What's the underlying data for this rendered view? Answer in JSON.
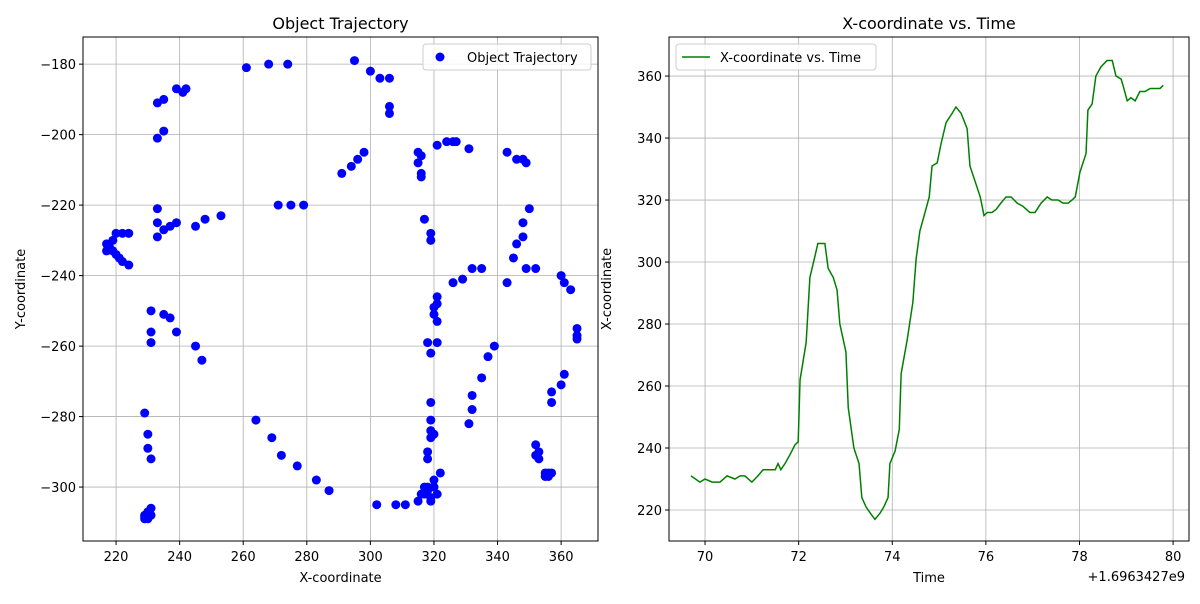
{
  "chart_data": [
    {
      "type": "scatter",
      "title": "Object Trajectory",
      "xlabel": "X-coordinate",
      "ylabel": "Y-coordinate",
      "xlim": [
        209.6,
        371.6
      ],
      "ylim": [
        -315.3,
        -172.3
      ],
      "xticks": [
        220,
        240,
        260,
        280,
        300,
        320,
        340,
        360
      ],
      "yticks": [
        {
          "value": -300,
          "label": "−300"
        },
        {
          "value": -280,
          "label": "−280"
        },
        {
          "value": -260,
          "label": "−260"
        },
        {
          "value": -240,
          "label": "−240"
        },
        {
          "value": -220,
          "label": "−220"
        },
        {
          "value": -200,
          "label": "−200"
        },
        {
          "value": -180,
          "label": "−180"
        }
      ],
      "grid": true,
      "legend": "upper right",
      "x": [
        217,
        217,
        218,
        219,
        219,
        220,
        220,
        222,
        222,
        221,
        224,
        224,
        231,
        231,
        231,
        235,
        237,
        239,
        245,
        247,
        233,
        235,
        239,
        241,
        242,
        235,
        233,
        233,
        233,
        235,
        237,
        239,
        233,
        245,
        248,
        253,
        261,
        268,
        274,
        271,
        275,
        279,
        291,
        294,
        296,
        298,
        300,
        303,
        306,
        306,
        306,
        295,
        315,
        315,
        316,
        316,
        316,
        317,
        319,
        319,
        321,
        324,
        326,
        327,
        331,
        343,
        346,
        348,
        349,
        350,
        348,
        348,
        346,
        345,
        326,
        329,
        332,
        335,
        343,
        349,
        352,
        321,
        321,
        320,
        320,
        321,
        318,
        319,
        321,
        339,
        337,
        335,
        332,
        332,
        331,
        360,
        361,
        363,
        365,
        365,
        365,
        361,
        360,
        357,
        357,
        319,
        319,
        319,
        320,
        319,
        318,
        318,
        322,
        320,
        264,
        269,
        272,
        277,
        283,
        287,
        302,
        308,
        311,
        315,
        317,
        318,
        317,
        319,
        319,
        320,
        321,
        316,
        318,
        352,
        353,
        352,
        353,
        355,
        356,
        355,
        357,
        356,
        229,
        230,
        230,
        231,
        229,
        229,
        230,
        231,
        231,
        230,
        229
      ],
      "series": [
        {
          "name": "Object Trajectory",
          "color": "#0000ff",
          "values": [
            -233,
            -231,
            -232,
            -230,
            -233,
            -234,
            -228,
            -228,
            -236,
            -235,
            -237,
            -228,
            -250,
            -256,
            -259,
            -251,
            -252,
            -256,
            -260,
            -264,
            -191,
            -190,
            -187,
            -188,
            -187,
            -199,
            -201,
            -221,
            -225,
            -227,
            -226,
            -225,
            -229,
            -226,
            -224,
            -223,
            -181,
            -180,
            -180,
            -220,
            -220,
            -220,
            -211,
            -209,
            -207,
            -205,
            -182,
            -184,
            -184,
            -192,
            -194,
            -179,
            -205,
            -208,
            -206,
            -211,
            -212,
            -224,
            -228,
            -230,
            -203,
            -202,
            -202,
            -202,
            -204,
            -205,
            -207,
            -207,
            -208,
            -221,
            -225,
            -229,
            -231,
            -235,
            -242,
            -241,
            -238,
            -238,
            -242,
            -238,
            -238,
            -246,
            -248,
            -249,
            -251,
            -253,
            -259,
            -262,
            -259,
            -260,
            -263,
            -269,
            -274,
            -278,
            -282,
            -240,
            -242,
            -244,
            -255,
            -257,
            -258,
            -268,
            -271,
            -273,
            -276,
            -276,
            -281,
            -284,
            -285,
            -286,
            -290,
            -292,
            -296,
            -298,
            -281,
            -286,
            -291,
            -294,
            -298,
            -301,
            -305,
            -305,
            -305,
            -304,
            -300,
            -301,
            -302,
            -303,
            -304,
            -300,
            -302,
            -302,
            -300,
            -288,
            -290,
            -291,
            -292,
            -296,
            -296,
            -297,
            -296,
            -297,
            -279,
            -285,
            -289,
            -292,
            -308,
            -309,
            -309,
            -308,
            -306,
            -307,
            -308.5
          ]
        }
      ]
    },
    {
      "type": "line",
      "title": "X-coordinate vs. Time",
      "xlabel": "Time",
      "ylabel": "X-coordinate",
      "x_offset_text": "+1.6963427e9",
      "xlim": [
        69.23,
        80.34
      ],
      "ylim": [
        210,
        372.6
      ],
      "xticks": [
        70,
        72,
        74,
        76,
        78,
        80
      ],
      "yticks": [
        220,
        240,
        260,
        280,
        300,
        320,
        340,
        360
      ],
      "grid": true,
      "legend": "upper left",
      "x": [
        69.7,
        69.89,
        70.0,
        70.15,
        70.32,
        70.47,
        70.64,
        70.75,
        70.85,
        71.0,
        71.13,
        71.24,
        71.39,
        71.5,
        71.56,
        71.62,
        71.71,
        71.82,
        71.92,
        71.99,
        72.03,
        72.16,
        72.24,
        72.35,
        72.41,
        72.56,
        72.63,
        72.74,
        72.82,
        72.88,
        73.01,
        73.06,
        73.18,
        73.29,
        73.35,
        73.44,
        73.53,
        73.63,
        73.74,
        73.82,
        73.91,
        73.95,
        74.06,
        74.15,
        74.19,
        74.32,
        74.44,
        74.51,
        74.59,
        74.7,
        74.79,
        74.85,
        74.96,
        75.04,
        75.15,
        75.28,
        75.36,
        75.47,
        75.6,
        75.66,
        75.77,
        75.88,
        75.96,
        76.03,
        76.13,
        76.22,
        76.32,
        76.43,
        76.54,
        76.67,
        76.79,
        76.94,
        77.05,
        77.18,
        77.31,
        77.41,
        77.54,
        77.65,
        77.76,
        77.84,
        77.91,
        78.01,
        78.14,
        78.18,
        78.27,
        78.35,
        78.46,
        78.59,
        78.7,
        78.78,
        78.89,
        78.93,
        79.02,
        79.1,
        79.19,
        79.29,
        79.4,
        79.51,
        79.62,
        79.72,
        79.79
      ],
      "series": [
        {
          "name": "X-coordinate vs. Time",
          "color": "#008000",
          "values": [
            231,
            229,
            230,
            229,
            229,
            231,
            230,
            231,
            231,
            229,
            231,
            233,
            233,
            233,
            235,
            233,
            235,
            238,
            241,
            242,
            262,
            274,
            295,
            302,
            306,
            306,
            298,
            295,
            291,
            280,
            271,
            253,
            240,
            235,
            224,
            221,
            219,
            217,
            219,
            221,
            224,
            235,
            239,
            246,
            264,
            275,
            287,
            301,
            310,
            316,
            321,
            331,
            332,
            338,
            345,
            348,
            350,
            348,
            343,
            331,
            326,
            321,
            315,
            316,
            316,
            317,
            319,
            321,
            321,
            319,
            318,
            316,
            316,
            319,
            321,
            320,
            320,
            319,
            319,
            320,
            321,
            329,
            335,
            349,
            351,
            360,
            363,
            365,
            365,
            360,
            359,
            357,
            352,
            353,
            352,
            355,
            355,
            356,
            356,
            356,
            357
          ]
        }
      ]
    }
  ]
}
